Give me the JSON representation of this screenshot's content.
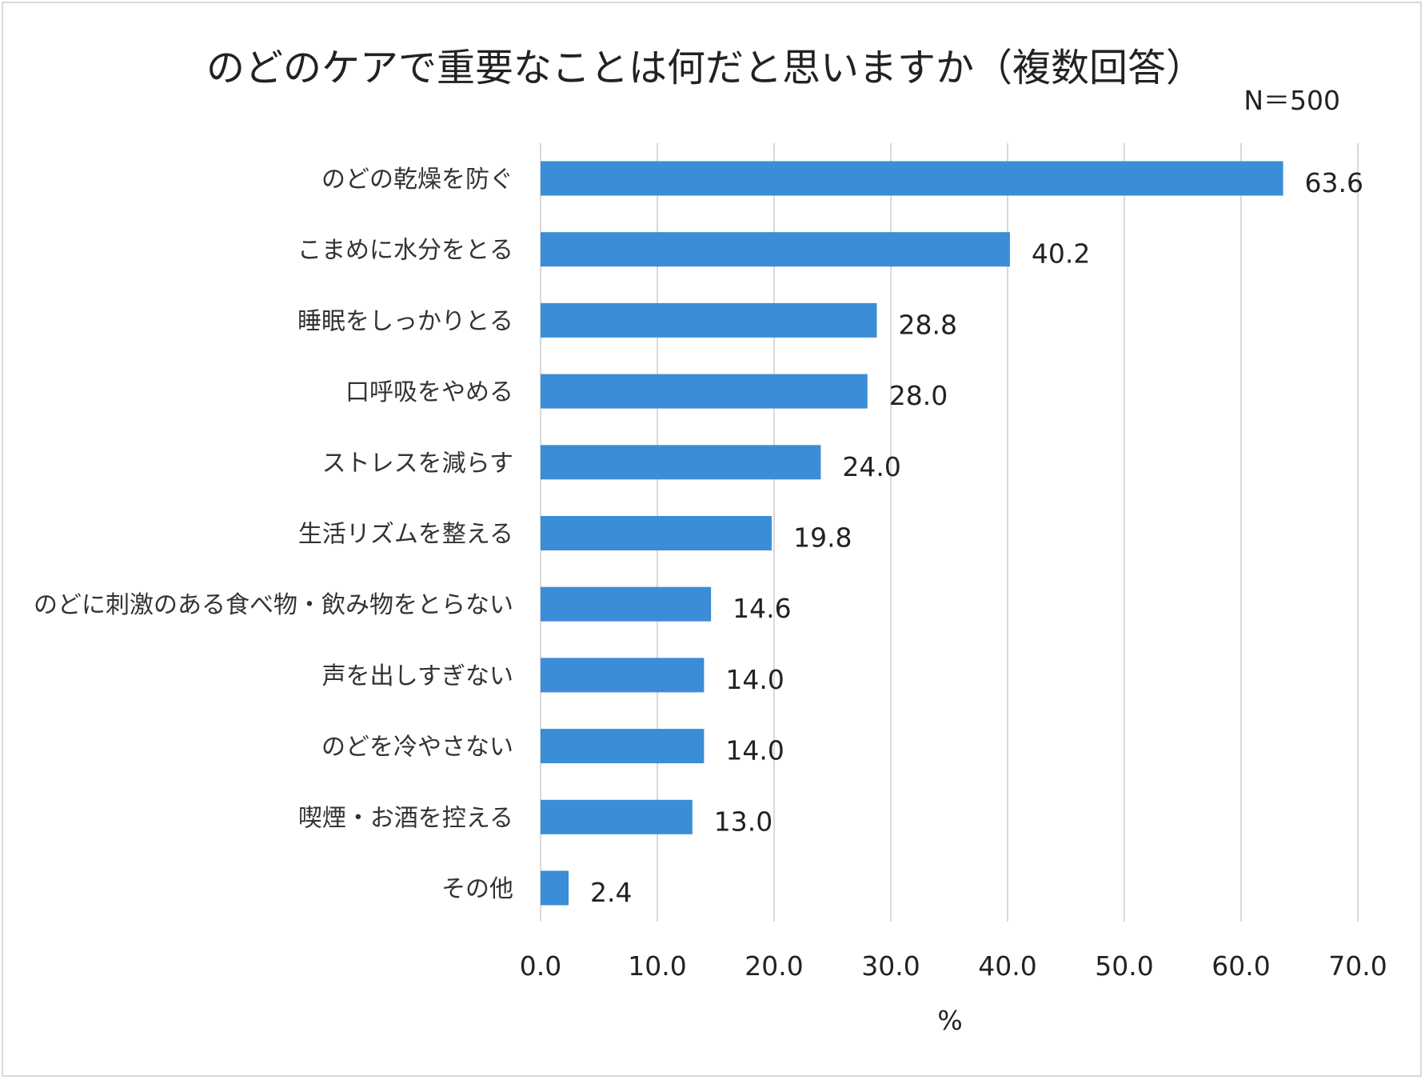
{
  "chart_data": {
    "type": "bar",
    "orientation": "horizontal",
    "title": "のどのケアで重要なことは何だと思いますか（複数回答）",
    "note": "N＝500",
    "xlabel": "%",
    "ylabel": "",
    "xlim": [
      0,
      70
    ],
    "ticks": [
      0,
      10,
      20,
      30,
      40,
      50,
      60,
      70
    ],
    "tick_labels": [
      "0.0",
      "10.0",
      "20.0",
      "30.0",
      "40.0",
      "50.0",
      "60.0",
      "70.0"
    ],
    "grid": true,
    "bar_color": "#3a8dd6",
    "categories": [
      "のどの乾燥を防ぐ",
      "こまめに水分をとる",
      "睡眠をしっかりとる",
      "口呼吸をやめる",
      "ストレスを減らす",
      "生活リズムを整える",
      "のどに刺激のある食べ物・飲み物をとらない",
      "声を出しすぎない",
      "のどを冷やさない",
      "喫煙・お酒を控える",
      "その他"
    ],
    "values": [
      63.6,
      40.2,
      28.8,
      28.0,
      24.0,
      19.8,
      14.6,
      14.0,
      14.0,
      13.0,
      2.4
    ],
    "value_labels": [
      "63.6",
      "40.2",
      "28.8",
      "28.0",
      "24.0",
      "19.8",
      "14.6",
      "14.0",
      "14.0",
      "13.0",
      "2.4"
    ]
  }
}
